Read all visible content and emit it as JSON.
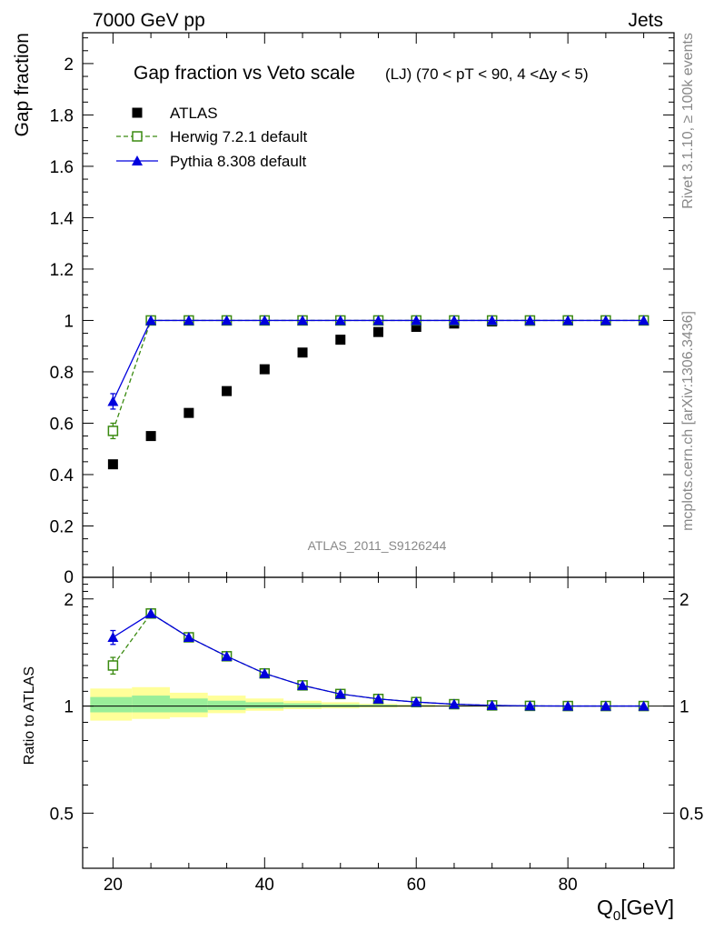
{
  "header": {
    "left": "7000 GeV pp",
    "right": "Jets"
  },
  "side_text": {
    "rivet": "Rivet 3.1.10, ≥ 100k events",
    "mcplots": "mcplots.cern.ch [arXiv:1306.3436]"
  },
  "watermark": "ATLAS_2011_S9126244",
  "chart_data": [
    {
      "type": "scatter",
      "title": "Gap fraction vs Veto scale",
      "subtitle": "(LJ) (70 < pT <  90, 4 <Δy < 5)",
      "ylabel": "Gap fraction",
      "xlabel": "",
      "xlim": [
        16,
        94
      ],
      "ylim": [
        0,
        2.12
      ],
      "y_ticks": [
        0.2,
        0.4,
        0.6,
        0.8,
        1,
        1.2,
        1.4,
        1.6,
        1.8,
        2
      ],
      "y_tick_labels": [
        "0.2",
        "0.4",
        "0.6",
        "0.8",
        "1",
        "1.2",
        "1.4",
        "1.6",
        "1.8",
        "2"
      ],
      "y_zero_label": "0",
      "legend_position": "top-left",
      "x": [
        20,
        25,
        30,
        35,
        40,
        45,
        50,
        55,
        60,
        65,
        70,
        75,
        80,
        85,
        90
      ],
      "series": [
        {
          "name": "ATLAS",
          "color": "#000000",
          "marker": "filled-square",
          "values": [
            0.44,
            0.55,
            0.64,
            0.725,
            0.81,
            0.875,
            0.925,
            0.955,
            0.975,
            0.988,
            0.996,
            0.999,
            1.0,
            1.0,
            1.0
          ]
        },
        {
          "name": "Herwig 7.2.1 default",
          "color": "#3a8a10",
          "marker": "open-square",
          "line": "dashed",
          "values": [
            0.57,
            1.0,
            1.0,
            1.0,
            1.0,
            1.0,
            1.0,
            1.0,
            1.0,
            1.0,
            1.0,
            1.0,
            1.0,
            1.0,
            1.0
          ],
          "errors": [
            0.03,
            0,
            0,
            0,
            0,
            0,
            0,
            0,
            0,
            0,
            0,
            0,
            0,
            0,
            0
          ]
        },
        {
          "name": "Pythia 8.308 default",
          "color": "#0000dd",
          "marker": "filled-triangle",
          "line": "solid",
          "values": [
            0.685,
            1.0,
            1.0,
            1.0,
            1.0,
            1.0,
            1.0,
            1.0,
            1.0,
            1.0,
            1.0,
            1.0,
            1.0,
            1.0,
            1.0
          ],
          "errors": [
            0.03,
            0,
            0,
            0,
            0,
            0,
            0,
            0,
            0,
            0,
            0,
            0,
            0,
            0,
            0
          ]
        }
      ]
    },
    {
      "type": "line",
      "title": "",
      "ylabel": "Ratio to ATLAS",
      "xlabel": "Q₀ [GeV]",
      "xlabel_main": "Q",
      "xlabel_sub": "0",
      "xlabel_unit": "[GeV]",
      "xlim": [
        16,
        94
      ],
      "ylim": [
        0.35,
        2.3
      ],
      "y_scale": "log",
      "y_ticks": [
        0.5,
        1,
        2
      ],
      "y_tick_labels": [
        "0.5",
        "1",
        "2"
      ],
      "x_ticks": [
        20,
        40,
        60,
        80
      ],
      "x_tick_labels": [
        "20",
        "40",
        "60",
        "80"
      ],
      "x": [
        20,
        25,
        30,
        35,
        40,
        45,
        50,
        55,
        60,
        65,
        70,
        75,
        80,
        85,
        90
      ],
      "bands": {
        "colors": {
          "outer": "#ffff99",
          "inner": "#99ee99"
        },
        "edges": [
          17,
          22.5,
          27.5,
          32.5,
          37.5,
          42.5,
          47.5,
          52.5,
          57.5,
          62.5,
          67.5,
          72.5,
          77.5,
          82.5,
          87.5,
          92.5
        ],
        "outer_low": [
          0.91,
          0.92,
          0.93,
          0.955,
          0.97,
          0.98,
          0.985,
          0.99,
          0.993,
          0.996,
          0.998,
          0.998,
          0.999,
          0.999,
          0.999
        ],
        "outer_high": [
          1.12,
          1.13,
          1.09,
          1.07,
          1.05,
          1.035,
          1.025,
          1.015,
          1.01,
          1.006,
          1.004,
          1.003,
          1.002,
          1.002,
          1.002
        ],
        "inner_low": [
          0.96,
          0.96,
          0.96,
          0.975,
          0.985,
          0.99,
          0.993,
          0.995,
          0.997,
          0.998,
          0.999,
          0.999,
          0.9995,
          0.9995,
          0.9995
        ],
        "inner_high": [
          1.06,
          1.07,
          1.05,
          1.035,
          1.025,
          1.018,
          1.012,
          1.008,
          1.005,
          1.003,
          1.002,
          1.0015,
          1.001,
          1.001,
          1.001
        ]
      },
      "series": [
        {
          "name": "Herwig 7.2.1 default",
          "color": "#3a8a10",
          "marker": "open-square",
          "line": "dashed",
          "values": [
            1.3,
            1.82,
            1.56,
            1.38,
            1.235,
            1.143,
            1.081,
            1.047,
            1.026,
            1.012,
            1.004,
            1.001,
            1.0,
            1.0,
            1.0
          ],
          "errors": [
            0.07,
            0,
            0,
            0,
            0,
            0,
            0,
            0,
            0,
            0,
            0,
            0,
            0,
            0,
            0
          ]
        },
        {
          "name": "Pythia 8.308 default",
          "color": "#0000dd",
          "marker": "filled-triangle",
          "line": "solid",
          "values": [
            1.56,
            1.82,
            1.56,
            1.38,
            1.235,
            1.143,
            1.081,
            1.047,
            1.026,
            1.012,
            1.004,
            1.001,
            1.0,
            1.0,
            1.0
          ],
          "errors": [
            0.07,
            0,
            0,
            0,
            0,
            0,
            0,
            0,
            0,
            0,
            0,
            0,
            0,
            0,
            0
          ]
        }
      ]
    }
  ]
}
